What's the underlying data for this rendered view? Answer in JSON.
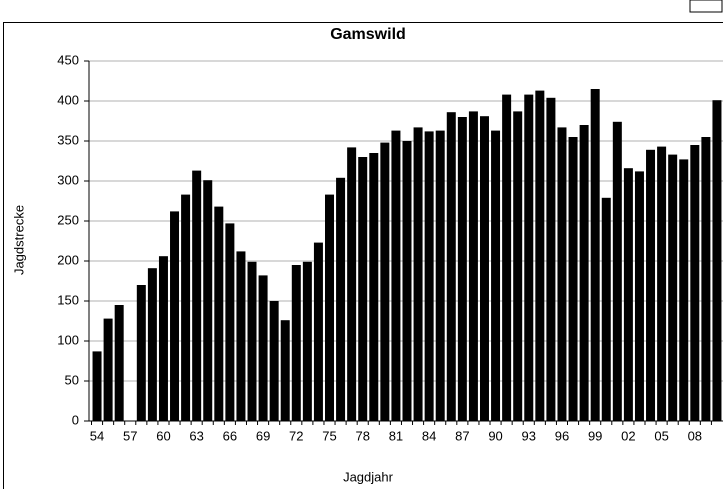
{
  "chart_data": {
    "type": "bar",
    "title": "Gamswild",
    "x_label": "Jagdjahr",
    "y_label": "Jagdstrecke",
    "categories": [
      "54",
      null,
      null,
      "57",
      null,
      null,
      "60",
      null,
      null,
      "63",
      null,
      null,
      "66",
      null,
      null,
      "69",
      null,
      null,
      "72",
      null,
      null,
      "75",
      null,
      null,
      "78",
      null,
      null,
      "81",
      null,
      null,
      "84",
      null,
      null,
      "87",
      null,
      null,
      "90",
      null,
      null,
      "93",
      null,
      null,
      "96",
      null,
      null,
      "99",
      null,
      null,
      "02",
      null,
      null,
      "05",
      null,
      null,
      "08",
      null,
      null
    ],
    "values": [
      87,
      128,
      145,
      null,
      170,
      191,
      206,
      262,
      283,
      313,
      301,
      268,
      247,
      212,
      199,
      182,
      150,
      126,
      195,
      199,
      223,
      283,
      304,
      342,
      330,
      335,
      348,
      363,
      350,
      367,
      362,
      363,
      386,
      380,
      387,
      381,
      363,
      408,
      387,
      408,
      413,
      404,
      367,
      355,
      370,
      415,
      279,
      374,
      316,
      312,
      339,
      343,
      333,
      327,
      345,
      355,
      401
    ],
    "color": "#000000",
    "ylim": [
      0,
      450
    ],
    "yticks": [
      0,
      50,
      100,
      150,
      200,
      250,
      300,
      350,
      400,
      450
    ],
    "grid": true
  }
}
